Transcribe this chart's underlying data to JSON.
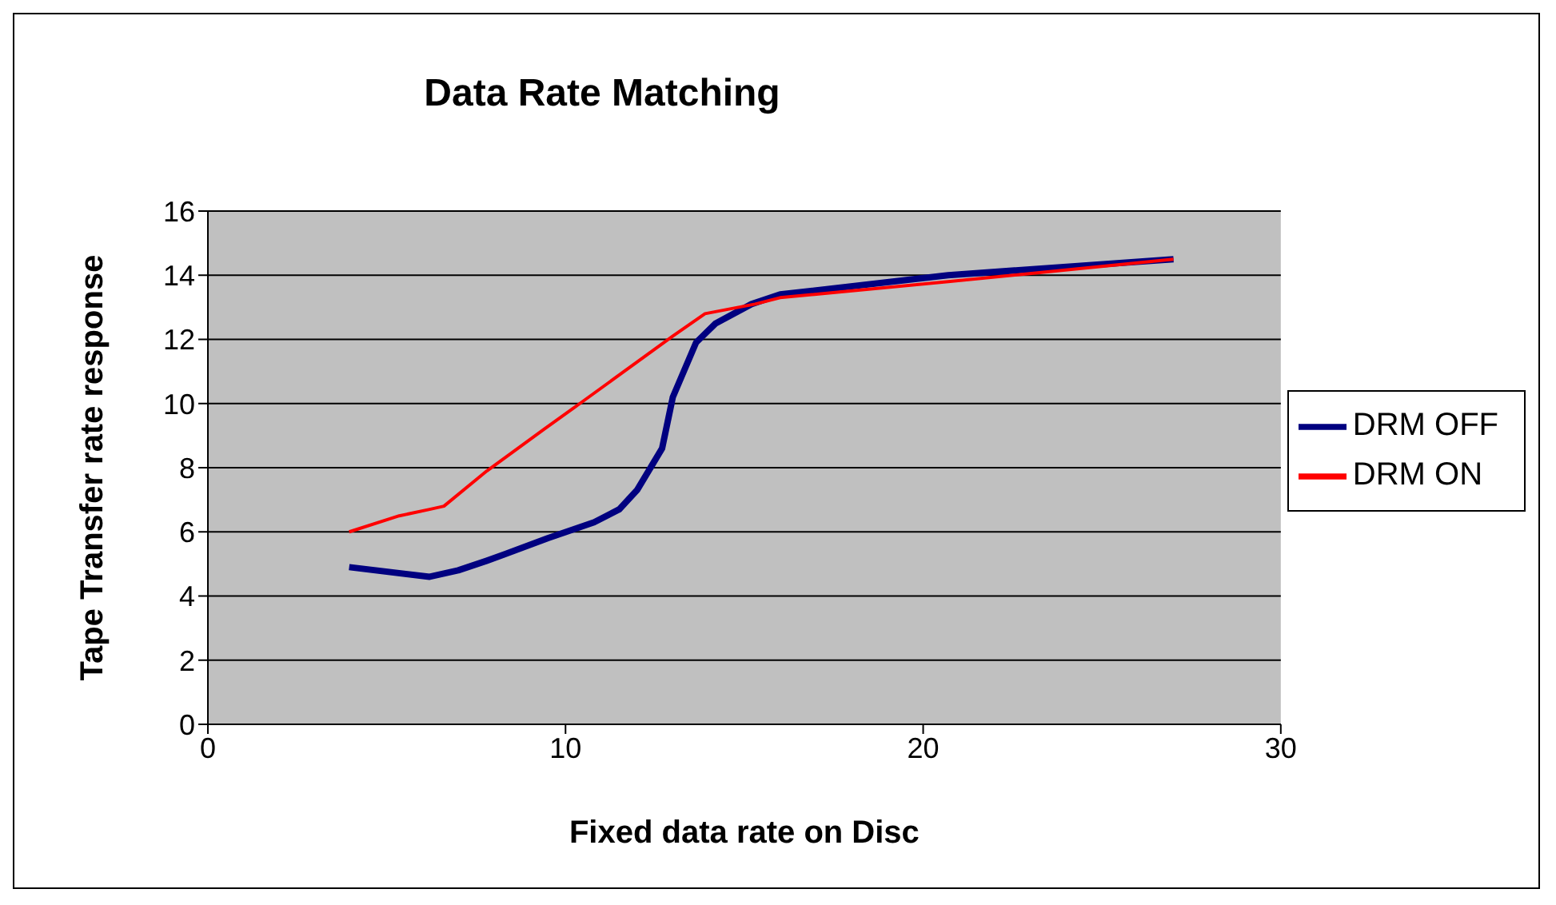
{
  "chart_data": {
    "type": "line",
    "title": "Data Rate Matching",
    "xlabel": "Fixed data rate on Disc",
    "ylabel": "Tape Transfer rate response",
    "xlim": [
      0,
      30
    ],
    "xticks": [
      0,
      10,
      20,
      30
    ],
    "ylim": [
      0,
      16
    ],
    "yticks": [
      0,
      2,
      4,
      6,
      8,
      10,
      12,
      14,
      16
    ],
    "grid": "y",
    "legend": "right",
    "marker": "none",
    "line_style": "solid",
    "series": [
      {
        "name": "DRM OFF",
        "color": "#000080",
        "x": [
          3.95,
          6.2,
          7.0,
          7.8,
          8.3,
          9.5,
          10.8,
          11.5,
          12.0,
          12.7,
          13.0,
          13.65,
          14.2,
          15.2,
          16.0,
          20.7,
          27.0
        ],
        "values": [
          4.9,
          4.6,
          4.8,
          5.1,
          5.3,
          5.8,
          6.3,
          6.7,
          7.3,
          8.6,
          10.2,
          11.9,
          12.5,
          13.1,
          13.4,
          14.0,
          14.5
        ]
      },
      {
        "name": "DRM ON",
        "color": "#ff0000",
        "x": [
          3.95,
          5.35,
          6.2,
          6.6,
          7.8,
          9.4,
          10.4,
          13.0,
          13.9,
          15.3,
          16.0,
          20.7,
          27.0
        ],
        "values": [
          6.0,
          6.5,
          6.7,
          6.8,
          7.9,
          9.2,
          10.0,
          12.1,
          12.8,
          13.1,
          13.3,
          13.8,
          14.5
        ]
      }
    ]
  }
}
